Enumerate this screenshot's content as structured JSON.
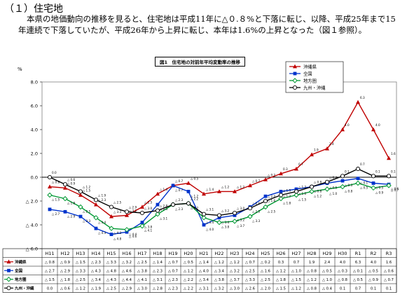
{
  "section": {
    "heading": "（１）住宅地",
    "paragraph": "本県の地価動向の推移を見ると、住宅地は平成11年に△０.８%と下落に転じ、以降、平成25年まで15年連続で下落していたが、平成26年から上昇に転じ、本年は1.6%の上昇となった（図１参照）。"
  },
  "chart_data": {
    "type": "line",
    "title": "図1　住宅地の対前年平均変動率の推移",
    "ylabel": "%",
    "ylim": [
      -6.0,
      8.0
    ],
    "yticks": [
      {
        "v": 8.0,
        "label": "8.0"
      },
      {
        "v": 6.0,
        "label": "6.0"
      },
      {
        "v": 4.0,
        "label": "4.0"
      },
      {
        "v": 2.0,
        "label": "2.0"
      },
      {
        "v": 0.0,
        "label": "0.0"
      },
      {
        "v": -2.0,
        "label": "△ 2.0"
      },
      {
        "v": -4.0,
        "label": "△ 4.0"
      },
      {
        "v": -6.0,
        "label": "△ 6.0"
      }
    ],
    "categories": [
      "H11",
      "H12",
      "H13",
      "H14",
      "H15",
      "H16",
      "H17",
      "H18",
      "H19",
      "H20",
      "H21",
      "H22",
      "H23",
      "H24",
      "H25",
      "H26",
      "H27",
      "H28",
      "H29",
      "H30",
      "R1",
      "R2",
      "R3"
    ],
    "legend_position": "top-right",
    "series": [
      {
        "name": "沖縄県",
        "color": "#c00000",
        "marker": "triangle",
        "values": [
          -0.8,
          -0.9,
          -1.5,
          -2.3,
          -3.3,
          -3.2,
          -2.5,
          -1.4,
          -0.7,
          -0.5,
          -1.4,
          -1.2,
          -1.2,
          -0.7,
          -0.2,
          0.3,
          0.7,
          1.9,
          2.4,
          4.0,
          6.3,
          4.0,
          1.6
        ],
        "labels": [
          "△ 0.8",
          "△ 0.9",
          "△ 1.5",
          "△ 2.3",
          "△ 3.3",
          "△ 3.2",
          "△ 2.5",
          "△ 1.4",
          "△ 0.7",
          "△ 0.5",
          "△ 1.4",
          "△ 1.2",
          "△ 1.2",
          "△ 0.7",
          "△ 0.2",
          "0.3",
          "0.7",
          "1.9",
          "2.4",
          "4.0",
          "6.3",
          "4.0",
          "1.6"
        ]
      },
      {
        "name": "全国",
        "color": "#0033cc",
        "marker": "square",
        "values": [
          -2.7,
          -2.9,
          -3.3,
          -4.3,
          -4.8,
          -4.6,
          -3.8,
          -2.3,
          -0.7,
          -1.2,
          -4.0,
          -3.4,
          -3.2,
          -2.5,
          -1.6,
          -1.2,
          -1.0,
          -0.8,
          -0.5,
          -0.3,
          -0.1,
          -0.5,
          -0.6
        ],
        "labels": [
          "△ 2.7",
          "△ 2.9",
          "△ 3.3",
          "△ 4.3",
          "△ 4.8",
          "△ 4.6",
          "△ 3.8",
          "△ 2.3",
          "△ 0.7",
          "△ 1.2",
          "△ 4.0",
          "△ 3.4",
          "△ 3.2",
          "△ 2.5",
          "△ 1.6",
          "△ 1.2",
          "△ 1.0",
          "△ 0.8",
          "△ 0.5",
          "△ 0.3",
          "△ 0.1",
          "△ 0.5",
          "△ 0.6"
        ]
      },
      {
        "name": "地方圏",
        "color": "#009933",
        "marker": "diamond",
        "values": [
          -1.5,
          -1.8,
          -2.5,
          -3.4,
          -4.3,
          -4.4,
          -4.1,
          -3.1,
          -2.3,
          -2.2,
          -3.4,
          -3.8,
          -3.7,
          -3.3,
          -2.5,
          -1.8,
          -1.5,
          -1.2,
          -1.0,
          -0.8,
          -0.5,
          -0.9,
          -0.7
        ],
        "labels": [
          "△ 1.5",
          "△ 1.8",
          "△ 2.5",
          "△ 3.4",
          "△ 4.3",
          "△ 4.4",
          "△ 4.1",
          "△ 3.1",
          "△ 2.3",
          "△ 2.2",
          "△ 3.4",
          "△ 3.8",
          "△ 3.7",
          "△ 3.3",
          "△ 2.5",
          "△ 1.8",
          "△ 1.5",
          "△ 1.2",
          "△ 1.0",
          "△ 0.8",
          "△ 0.5",
          "△ 0.9",
          "△ 0.7"
        ]
      },
      {
        "name": "九州・沖縄",
        "color": "#000000",
        "marker": "circle",
        "values": [
          0.0,
          -0.6,
          -1.2,
          -1.9,
          -2.5,
          -2.9,
          -3.0,
          -2.8,
          -2.3,
          -2.2,
          -3.1,
          -3.2,
          -3.0,
          -2.6,
          -2.0,
          -1.5,
          -1.2,
          -0.8,
          -0.4,
          0.1,
          0.7,
          0.1,
          0.1
        ],
        "labels": [
          "0.0",
          "△ 0.6",
          "△ 1.2",
          "△ 1.9",
          "△ 2.5",
          "△ 2.9",
          "△ 3.0",
          "△ 2.8",
          "△ 2.3",
          "△ 2.2",
          "△ 3.1",
          "△ 3.2",
          "△ 3.0",
          "△ 2.6",
          "△ 2.0",
          "△ 1.5",
          "△ 1.2",
          "△ 0.8",
          "△ 0.4",
          "0.1",
          "0.7",
          "0.1",
          "0.1"
        ]
      }
    ]
  }
}
